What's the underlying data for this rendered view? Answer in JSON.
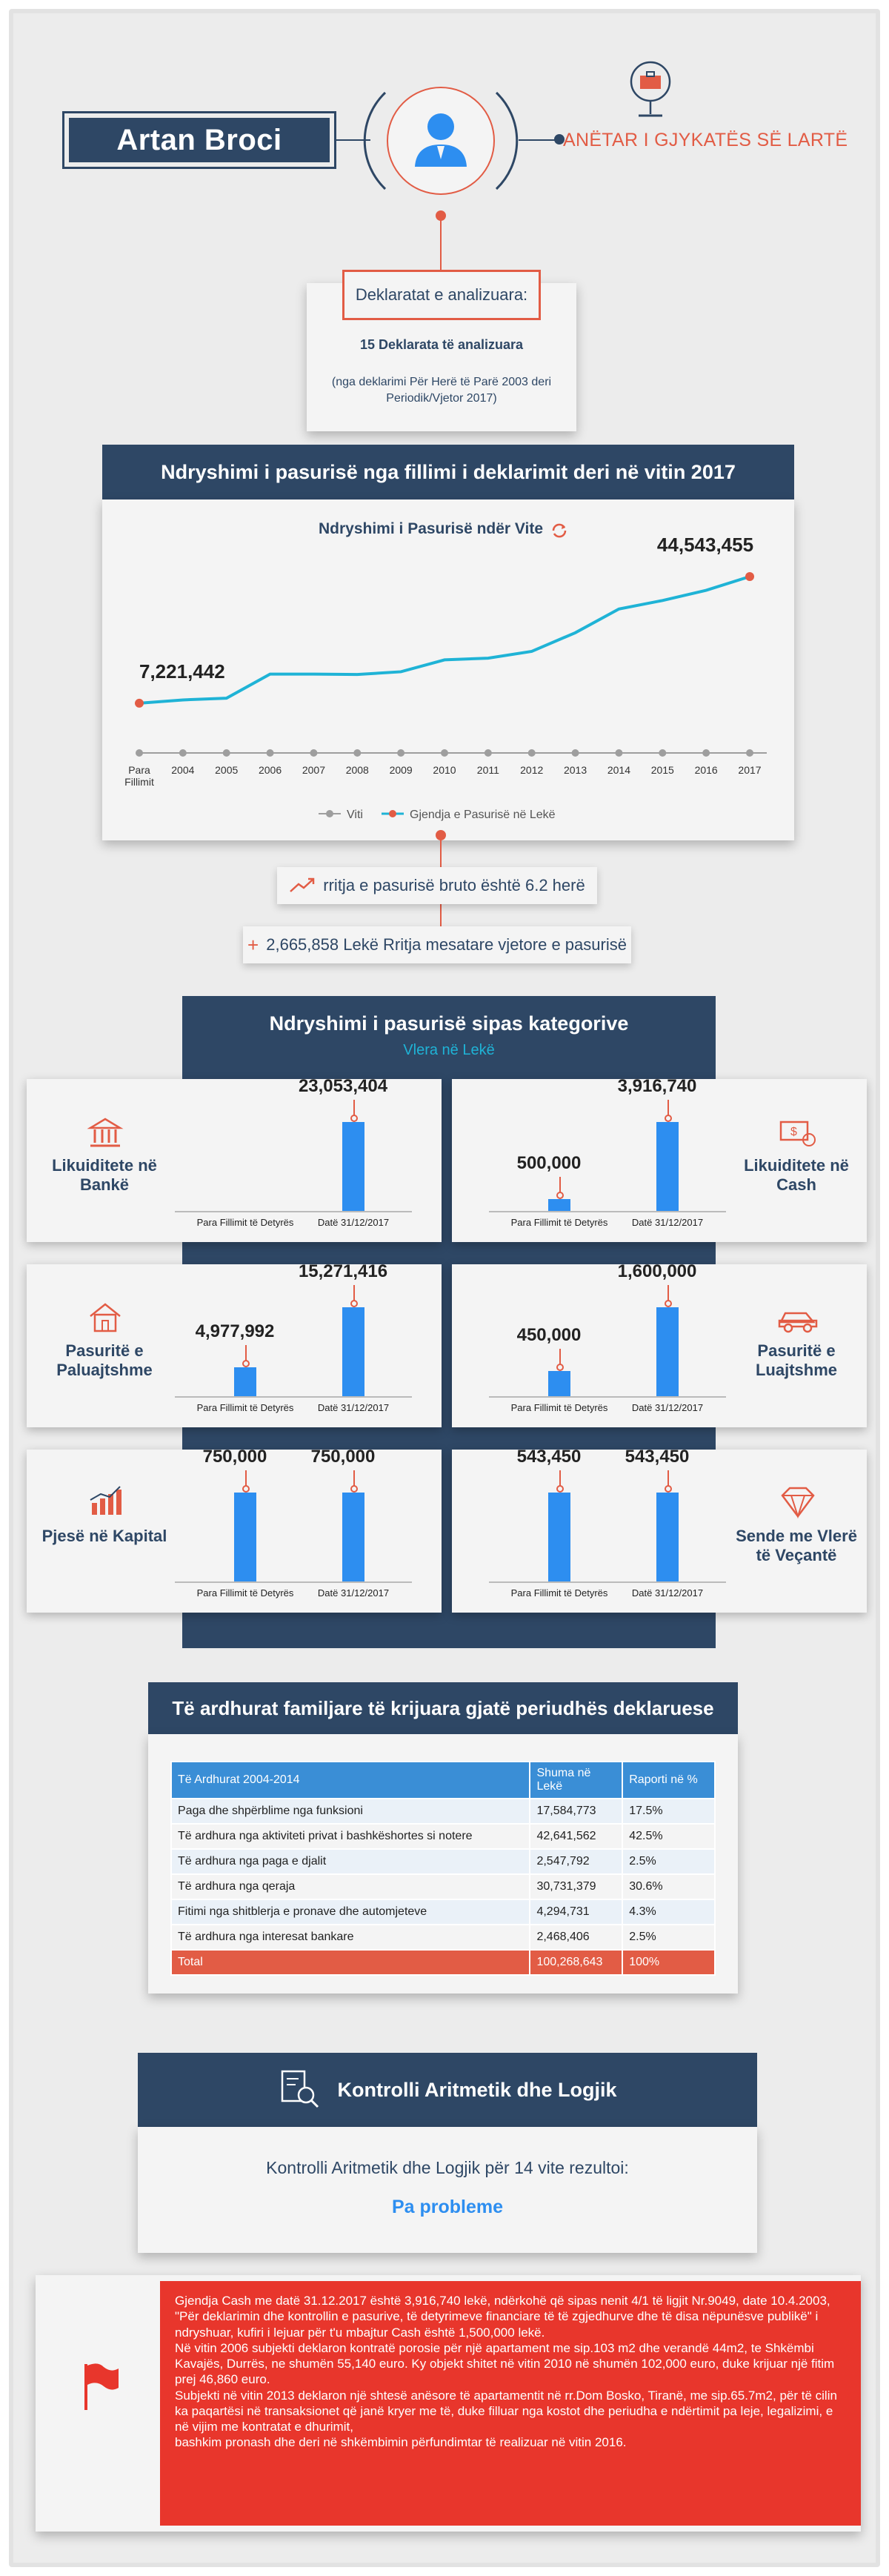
{
  "header": {
    "name": "Artan Broci",
    "role": "ANËTAR I GJYKATËS SË LARTË",
    "avatar_icon": "user-avatar-icon",
    "role_icon": "briefcase-icon"
  },
  "declarations": {
    "title": "Deklaratat e analizuara:",
    "count": "15 Deklarata të analizuara",
    "subtitle": "(nga deklarimi Për Herë të Parë 2003 deri Periodik/Vjetor 2017)"
  },
  "wealth_change": {
    "section_title": "Ndryshimi i pasurisë nga fillimi i deklarimit deri në vitin 2017",
    "chart_title": "Ndryshimi i Pasurisë ndër Vite",
    "start_label": "7,221,442",
    "end_label": "44,543,455",
    "legend_year": "Viti",
    "legend_series": "Gjendja e Pasurisë në Lekë"
  },
  "chart_data": {
    "type": "line",
    "title": "Ndryshimi i Pasurisë ndër Vite",
    "categories": [
      "Para Fillimit",
      "2004",
      "2005",
      "2006",
      "2007",
      "2008",
      "2009",
      "2010",
      "2011",
      "2012",
      "2013",
      "2014",
      "2015",
      "2016",
      "2017"
    ],
    "series": [
      {
        "name": "Gjendja e Pasurisë në Lekë",
        "values": [
          7221442,
          8200000,
          8700000,
          15800000,
          15800000,
          15700000,
          16500000,
          20000000,
          20500000,
          22500000,
          28000000,
          35000000,
          37500000,
          40500000,
          44543455
        ]
      }
    ],
    "ylim": [
      0,
      50000000
    ],
    "grid": false,
    "legend": "bottom",
    "colors": {
      "line": "#1fb3d6",
      "axis": "#9e9e9e",
      "marker": "#e25c45"
    }
  },
  "growth": {
    "gross_growth": "rritja e pasurisë bruto është 6.2 herë",
    "annual_growth": "2,665,858 Lekë Rritja mesatare vjetore e pasurisë"
  },
  "categories": {
    "section_title": "Ndryshimi i pasurisë sipas kategorive",
    "section_subtitle": "Vlera në Lekë",
    "x_start": "Para Fillimit të Detyrës",
    "x_end": "Datë 31/12/2017",
    "items": [
      {
        "label": "Likuiditete në Bankë",
        "icon": "bank-icon",
        "start": 0,
        "end": 23053404,
        "start_label": "",
        "end_label": "23,053,404"
      },
      {
        "label": "Likuiditete në Cash",
        "icon": "cash-icon",
        "start": 500000,
        "end": 3916740,
        "start_label": "500,000",
        "end_label": "3,916,740"
      },
      {
        "label": "Pasuritë e Paluajtshme",
        "icon": "house-icon",
        "start": 4977992,
        "end": 15271416,
        "start_label": "4,977,992",
        "end_label": "15,271,416"
      },
      {
        "label": "Pasuritë e Luajtshme",
        "icon": "car-icon",
        "start": 450000,
        "end": 1600000,
        "start_label": "450,000",
        "end_label": "1,600,000"
      },
      {
        "label": "Pjesë në Kapital",
        "icon": "capital-chart-icon",
        "start": 750000,
        "end": 750000,
        "start_label": "750,000",
        "end_label": "750,000"
      },
      {
        "label": "Sende me Vlerë të Veçantë",
        "icon": "diamond-icon",
        "start": 543450,
        "end": 543450,
        "start_label": "543,450",
        "end_label": "543,450"
      }
    ]
  },
  "income": {
    "section_title": "Të ardhurat familjare të krijuara gjatë periudhës deklaruese",
    "headers": [
      "Të Ardhurat 2004-2014",
      "Shuma në Lekë",
      "Raporti në %"
    ],
    "rows": [
      [
        "Paga dhe shpërblime nga funksioni",
        "17,584,773",
        "17.5%"
      ],
      [
        "Të ardhura nga aktiviteti privat i bashkëshortes si notere",
        "42,641,562",
        "42.5%"
      ],
      [
        "Të ardhura nga paga e djalit",
        "2,547,792",
        "2.5%"
      ],
      [
        "Të ardhura nga qeraja",
        "30,731,379",
        "30.6%"
      ],
      [
        "Fitimi nga shitblerja e pronave dhe automjeteve",
        "4,294,731",
        "4.3%"
      ],
      [
        "Të ardhura nga interesat bankare",
        "2,468,406",
        "2.5%"
      ]
    ],
    "total": [
      "Total",
      "100,268,643",
      "100%"
    ]
  },
  "control": {
    "title": "Kontrolli Aritmetik dhe Logjik",
    "text": "Kontrolli Aritmetik dhe Logjik për 14 vite rezultoi:",
    "result": "Pa probleme",
    "icon": "document-search-icon"
  },
  "note": {
    "icon": "red-flag-icon",
    "lines": [
      "Gjendja Cash me datë 31.12.2017 është 3,916,740 lekë, ndërkohë që sipas nenit 4/1 të ligjit Nr.9049, date 10.4.2003, \"Për deklarimin dhe kontrollin e pasurive, të detyrimeve financiare të të zgjedhurve dhe të disa nëpunësve publikë\" i ndryshuar, kufiri i lejuar për t'u mbajtur Cash është 1,500,000 lekë.",
      "Në vitin 2006 subjekti deklaron kontratë porosie për një apartament me sip.103 m2 dhe verandë 44m2, te Shkëmbi Kavajës, Durrës, ne shumën 55,140 euro. Ky objekt shitet në vitin 2010 në shumën 102,000 euro, duke krijuar një fitim prej 46,860 euro.",
      "Subjekti në vitin 2013 deklaron një shtesë anësore të apartamentit në rr.Dom Bosko, Tiranë, me sip.65.7m2, për të cilin ka paqartësi në transaksionet që janë kryer me të, duke filluar nga kostot dhe periudha e ndërtimit pa leje, legalizimi, e në vijim me kontratat e dhurimit,",
      "bashkim pronash dhe deri në shkëmbimin përfundimtar të realizuar në vitin 2016."
    ]
  }
}
